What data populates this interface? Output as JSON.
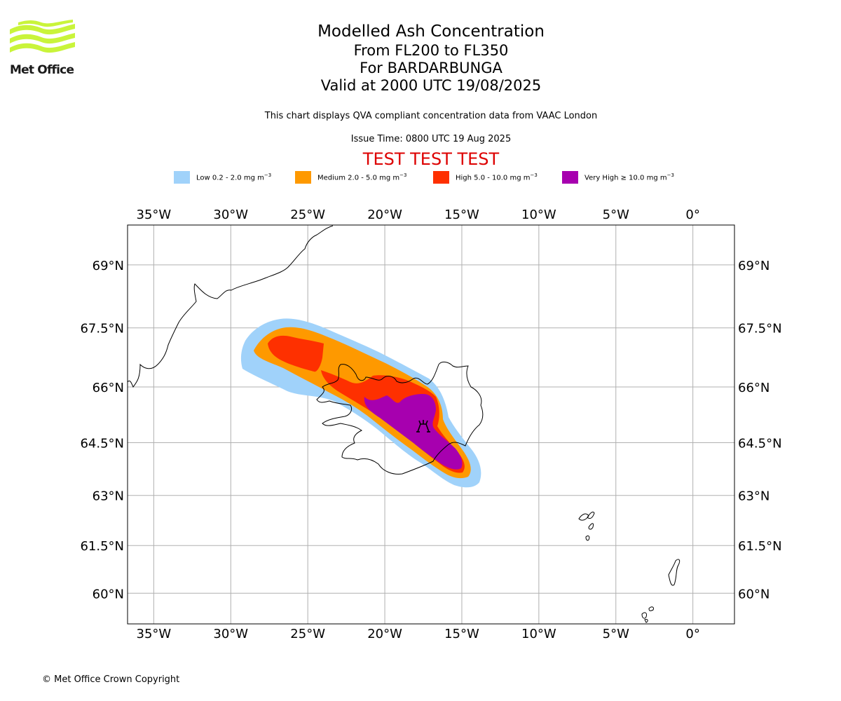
{
  "logo": {
    "text": "Met Office",
    "color": "#c9f43a",
    "icon": "met-office-wave-icon"
  },
  "title": {
    "main": "Modelled Ash Concentration",
    "levels": "From FL200 to FL350",
    "volcano": "For BARDARBUNGA",
    "valid": "Valid at 2000 UTC 19/08/2025"
  },
  "subtitle": "This chart displays QVA compliant concentration data from VAAC London",
  "issue_time": "Issue Time: 0800 UTC 19 Aug 2025",
  "test_banner": "TEST TEST TEST",
  "legend": [
    {
      "label": "Low 0.2 - 2.0 mg m",
      "color": "#a0d2fa"
    },
    {
      "label": "Medium 2.0 - 5.0 mg m",
      "color": "#fe9900"
    },
    {
      "label": "High 5.0 - 10.0 mg m",
      "color": "#fe3000"
    },
    {
      "label": "Very High ≥ 10.0 mg m",
      "color": "#a700af"
    }
  ],
  "legend_unit_exponent": "−3",
  "map": {
    "lon_ticks": [
      {
        "value": -35,
        "label": "35°W"
      },
      {
        "value": -30,
        "label": "30°W"
      },
      {
        "value": -25,
        "label": "25°W"
      },
      {
        "value": -20,
        "label": "20°W"
      },
      {
        "value": -15,
        "label": "15°W"
      },
      {
        "value": -10,
        "label": "10°W"
      },
      {
        "value": -5,
        "label": "5°W"
      },
      {
        "value": 0,
        "label": "0°"
      }
    ],
    "lat_ticks": [
      {
        "value": 69,
        "label": "69°N"
      },
      {
        "value": 67.5,
        "label": "67.5°N"
      },
      {
        "value": 66,
        "label": "66°N"
      },
      {
        "value": 64.5,
        "label": "64.5°N"
      },
      {
        "value": 63,
        "label": "63°N"
      },
      {
        "value": 61.5,
        "label": "61.5°N"
      },
      {
        "value": 60,
        "label": "60°N"
      }
    ],
    "lon_range": [
      -36.7,
      2.7
    ],
    "lat_range": [
      59.0,
      69.9
    ],
    "volcano": {
      "name": "BARDARBUNGA",
      "lon": -17.5,
      "lat": 64.65,
      "icon": "volcano-icon"
    },
    "grid": true
  },
  "copyright": "© Met Office Crown Copyright"
}
